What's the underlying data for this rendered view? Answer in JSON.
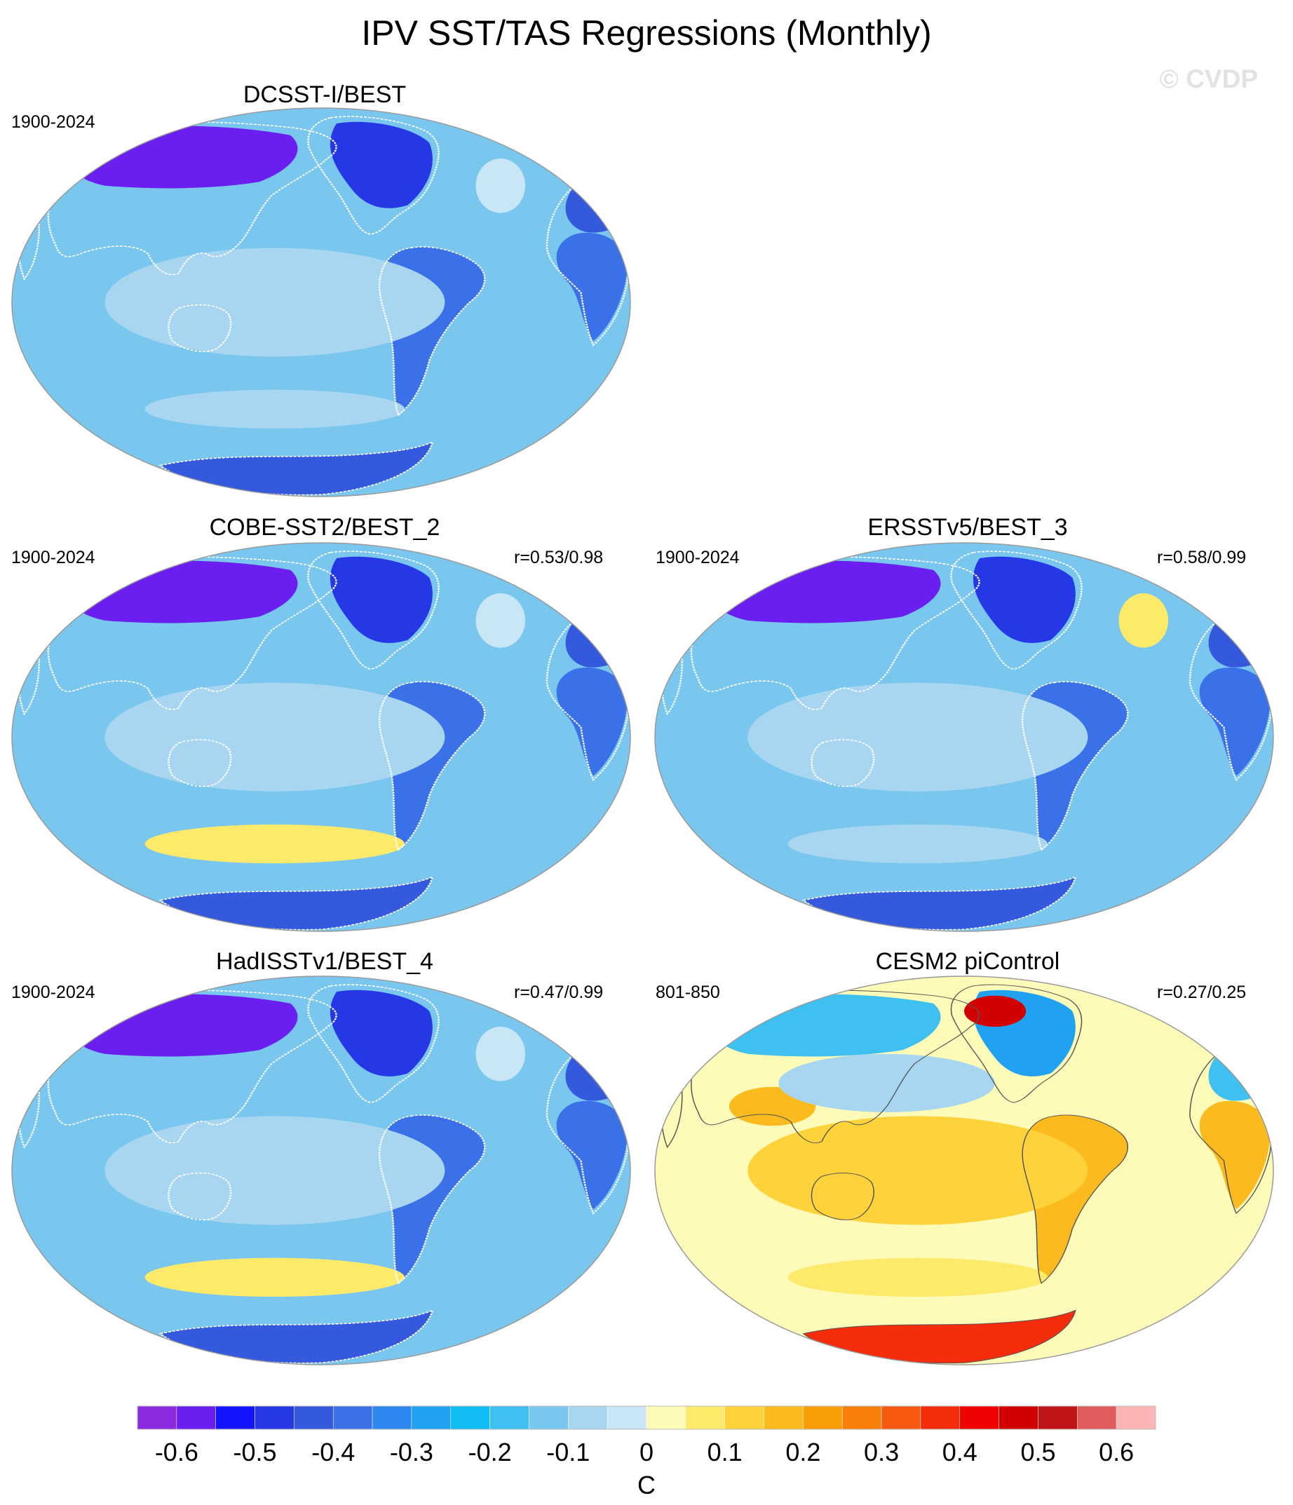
{
  "title": "IPV SST/TAS Regressions (Monthly)",
  "watermark": "© CVDP",
  "chart_data": {
    "type": "heatmap",
    "title": "IPV SST/TAS Regressions (Monthly)",
    "units": "C",
    "panels": [
      {
        "name": "DCSST-I/BEST",
        "period": "1900-2024",
        "pattern_corr": "",
        "regions": {
          "north_eurasia": -0.6,
          "europe": -0.45,
          "north_america": -0.5,
          "south_america": -0.4,
          "africa": -0.4,
          "australia": -0.3,
          "tropical_pacific": -0.1,
          "north_atlantic": -0.05,
          "southern_ocean": -0.1,
          "antarctica": -0.45
        }
      },
      {
        "name": "COBE-SST2/BEST_2",
        "period": "1900-2024",
        "pattern_corr": "r=0.53/0.98",
        "regions": {
          "north_eurasia": -0.6,
          "europe": -0.45,
          "north_america": -0.5,
          "south_america": -0.4,
          "africa": -0.4,
          "australia": -0.3,
          "tropical_pacific": -0.1,
          "north_atlantic": -0.05,
          "southern_ocean": 0.05,
          "antarctica": -0.45
        }
      },
      {
        "name": "ERSSTv5/BEST_3",
        "period": "1900-2024",
        "pattern_corr": "r=0.58/0.99",
        "regions": {
          "north_eurasia": -0.6,
          "europe": -0.45,
          "north_america": -0.5,
          "south_america": -0.4,
          "africa": -0.4,
          "australia": -0.3,
          "tropical_pacific": -0.1,
          "north_atlantic": 0.05,
          "southern_ocean": -0.1,
          "antarctica": -0.45
        }
      },
      {
        "name": "HadISSTv1/BEST_4",
        "period": "1900-2024",
        "pattern_corr": "r=0.47/0.99",
        "regions": {
          "north_eurasia": -0.6,
          "europe": -0.45,
          "north_america": -0.5,
          "south_america": -0.4,
          "africa": -0.4,
          "australia": -0.3,
          "tropical_pacific": -0.1,
          "north_atlantic": -0.05,
          "southern_ocean": 0.05,
          "antarctica": -0.45
        }
      },
      {
        "name": "CESM2 piControl",
        "period": "801-850",
        "pattern_corr": "r=0.27/0.25",
        "regions": {
          "north_eurasia": -0.2,
          "europe": -0.2,
          "north_america": -0.3,
          "alaska": 0.45,
          "south_asia": 0.15,
          "africa": 0.15,
          "south_america": 0.15,
          "australia": 0.2,
          "tropical_pacific": 0.1,
          "north_pacific": -0.1,
          "southern_ocean": 0.05,
          "antarctica": 0.35
        }
      }
    ],
    "colorbar": {
      "levels": [
        -0.65,
        -0.6,
        -0.55,
        -0.5,
        -0.45,
        -0.4,
        -0.35,
        -0.3,
        -0.25,
        -0.2,
        -0.15,
        -0.1,
        -0.05,
        0,
        0.05,
        0.1,
        0.15,
        0.2,
        0.25,
        0.3,
        0.35,
        0.4,
        0.45,
        0.5,
        0.55,
        0.6,
        0.65
      ],
      "colors": [
        "#8a2be2",
        "#6a1ff0",
        "#1414ff",
        "#2637e6",
        "#3559dc",
        "#3a70e8",
        "#2e88f0",
        "#21a1f2",
        "#12bdf5",
        "#3ec0f0",
        "#79c6ee",
        "#a8d6f0",
        "#c9e6f6",
        "#fefbb8",
        "#fde96a",
        "#fdd23a",
        "#fbbb1f",
        "#fa9e08",
        "#f87f0a",
        "#f65a10",
        "#f52d0c",
        "#f10000",
        "#d20000",
        "#c01518",
        "#e05c5c",
        "#fdb4b4"
      ],
      "tick_labels": [
        "-0.6",
        "-0.5",
        "-0.4",
        "-0.3",
        "-0.2",
        "-0.1",
        "0",
        "0.1",
        "0.2",
        "0.3",
        "0.4",
        "0.5",
        "0.6"
      ],
      "label": "C"
    }
  }
}
